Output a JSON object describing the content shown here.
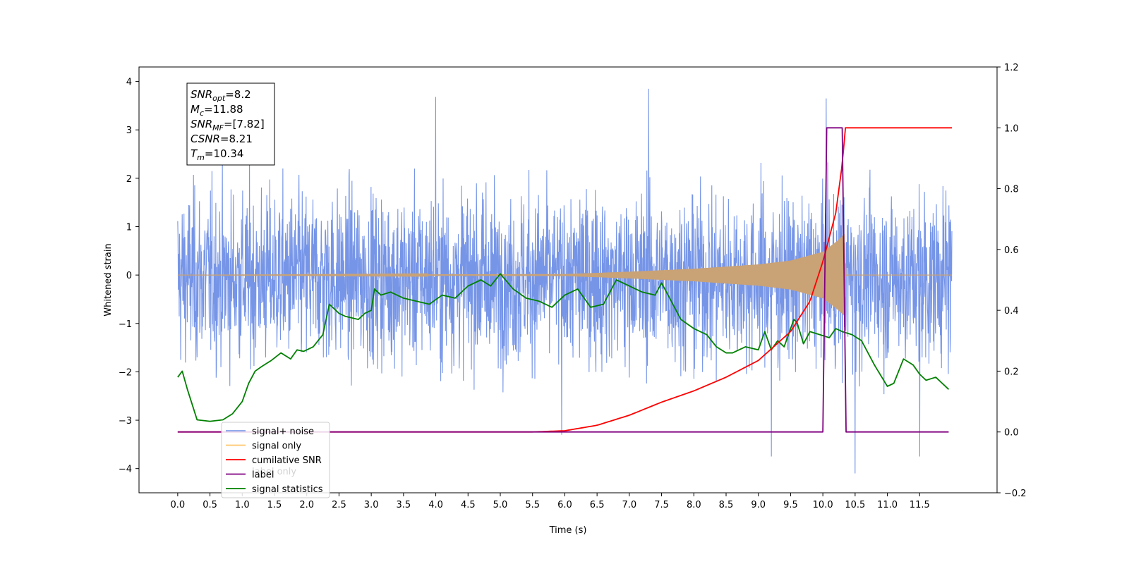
{
  "chart_data": {
    "type": "line",
    "xlabel": "Time (s)",
    "ylabel": "Whitened strain",
    "xlim": [
      -0.6,
      12.7
    ],
    "ylim": [
      -4.5,
      4.3
    ],
    "ylim_right": [
      -0.2,
      1.2
    ],
    "x_ticks": [
      0.0,
      0.5,
      1.0,
      1.5,
      2.0,
      2.5,
      3.0,
      3.5,
      4.0,
      4.5,
      5.0,
      5.5,
      6.0,
      6.5,
      7.0,
      7.5,
      8.0,
      8.5,
      9.0,
      9.5,
      10.0,
      10.5,
      11.0,
      11.5
    ],
    "x_tick_labels": [
      "0.0",
      "0.5",
      "1.0",
      "1.5",
      "2.0",
      "2.5",
      "3.0",
      "3.5",
      "4.0",
      "4.5",
      "5.0",
      "5.5",
      "6.0",
      "6.5",
      "7.0",
      "7.5",
      "8.0",
      "8.5",
      "9.0",
      "9.5",
      "10.0",
      "10.5",
      "11.0",
      "11.5"
    ],
    "y_ticks": [
      -4,
      -3,
      -2,
      -1,
      0,
      1,
      2,
      3,
      4
    ],
    "y_tick_labels": [
      "−4",
      "−3",
      "−2",
      "−1",
      "0",
      "1",
      "2",
      "3",
      "4"
    ],
    "y_ticks_right": [
      -0.2,
      0.0,
      0.2,
      0.4,
      0.6,
      0.8,
      1.0,
      1.2
    ],
    "y_tick_labels_right": [
      "−0.2",
      "0.0",
      "0.2",
      "0.4",
      "0.6",
      "0.8",
      "1.0",
      "1.2"
    ],
    "grid": false,
    "legend_position": "lower-left",
    "series": [
      {
        "name": "signal+ noise",
        "axis": "left",
        "color": "#6f8fe6",
        "x_range": [
          0.0,
          12.0
        ],
        "typical_range": [
          -2.3,
          2.2
        ],
        "peaks": [
          [
            4.0,
            3.68
          ],
          [
            7.3,
            3.85
          ],
          [
            10.05,
            3.65
          ],
          [
            5.95,
            -3.3
          ],
          [
            9.2,
            -3.75
          ],
          [
            10.5,
            -4.1
          ],
          [
            11.5,
            -3.75
          ]
        ]
      },
      {
        "name": "signal only",
        "axis": "left",
        "color": "#c9a276",
        "x_range": [
          0.0,
          12.0
        ],
        "envelope": [
          [
            0.0,
            0.0
          ],
          [
            6.0,
            0.02
          ],
          [
            7.0,
            0.07
          ],
          [
            8.0,
            0.13
          ],
          [
            9.0,
            0.22
          ],
          [
            9.5,
            0.3
          ],
          [
            10.0,
            0.48
          ],
          [
            10.2,
            0.68
          ],
          [
            10.34,
            0.85
          ],
          [
            10.36,
            0.0
          ],
          [
            12.0,
            0.0
          ]
        ]
      },
      {
        "name": "cumilative SNR",
        "axis": "right",
        "color": "#ff0000",
        "x": [
          0.0,
          5.5,
          6.0,
          6.5,
          7.0,
          7.5,
          8.0,
          8.5,
          9.0,
          9.5,
          9.8,
          10.0,
          10.2,
          10.3,
          10.35,
          12.0
        ],
        "values": [
          0.0,
          0.0,
          0.004,
          0.022,
          0.055,
          0.098,
          0.135,
          0.18,
          0.235,
          0.33,
          0.43,
          0.56,
          0.72,
          0.88,
          1.0,
          1.0
        ]
      },
      {
        "name": "label",
        "axis": "right",
        "color": "#800080",
        "x": [
          0.0,
          10.0,
          10.06,
          10.3,
          10.36,
          11.95
        ],
        "values": [
          0.0,
          0.0,
          1.0,
          1.0,
          0.0,
          0.0
        ]
      },
      {
        "name": "signal statistics",
        "axis": "right",
        "color": "#008000",
        "x": [
          0.0,
          0.07,
          0.15,
          0.3,
          0.5,
          0.7,
          0.85,
          1.0,
          1.1,
          1.2,
          1.3,
          1.45,
          1.6,
          1.75,
          1.85,
          1.95,
          2.1,
          2.25,
          2.35,
          2.4,
          2.5,
          2.6,
          2.8,
          2.9,
          3.0,
          3.05,
          3.15,
          3.3,
          3.5,
          3.7,
          3.9,
          4.1,
          4.3,
          4.5,
          4.7,
          4.85,
          5.0,
          5.2,
          5.4,
          5.6,
          5.8,
          6.0,
          6.2,
          6.4,
          6.6,
          6.8,
          7.0,
          7.2,
          7.4,
          7.5,
          7.6,
          7.8,
          8.0,
          8.2,
          8.35,
          8.5,
          8.6,
          8.8,
          9.0,
          9.1,
          9.2,
          9.3,
          9.4,
          9.55,
          9.6,
          9.7,
          9.8,
          9.95,
          10.1,
          10.2,
          10.3,
          10.45,
          10.6,
          10.8,
          11.0,
          11.1,
          11.25,
          11.4,
          11.5,
          11.6,
          11.75,
          11.95
        ],
        "values": [
          0.18,
          0.2,
          0.14,
          0.04,
          0.035,
          0.04,
          0.06,
          0.1,
          0.16,
          0.2,
          0.215,
          0.235,
          0.26,
          0.24,
          0.27,
          0.265,
          0.28,
          0.32,
          0.42,
          0.41,
          0.39,
          0.38,
          0.37,
          0.39,
          0.4,
          0.47,
          0.45,
          0.46,
          0.44,
          0.43,
          0.42,
          0.45,
          0.44,
          0.48,
          0.5,
          0.48,
          0.52,
          0.47,
          0.44,
          0.43,
          0.41,
          0.45,
          0.47,
          0.41,
          0.42,
          0.5,
          0.48,
          0.46,
          0.45,
          0.49,
          0.45,
          0.37,
          0.34,
          0.32,
          0.28,
          0.26,
          0.26,
          0.28,
          0.27,
          0.33,
          0.27,
          0.3,
          0.28,
          0.37,
          0.36,
          0.29,
          0.33,
          0.32,
          0.31,
          0.34,
          0.33,
          0.32,
          0.3,
          0.22,
          0.15,
          0.16,
          0.24,
          0.22,
          0.19,
          0.17,
          0.18,
          0.14
        ]
      }
    ],
    "legend_overlay": [
      "cumilative SNR",
      "label only"
    ],
    "annotation": {
      "lines": [
        {
          "var": "SNR",
          "sub": "opt",
          "value": "=8.2"
        },
        {
          "var": "M",
          "sub": "c",
          "value": "=11.88"
        },
        {
          "var": "SNR",
          "sub": "MF",
          "value": "=[7.82]"
        },
        {
          "var": "CSNR",
          "sub": "",
          "value": "=8.21"
        },
        {
          "var": "T",
          "sub": "m",
          "value": "=10.34"
        }
      ]
    }
  }
}
